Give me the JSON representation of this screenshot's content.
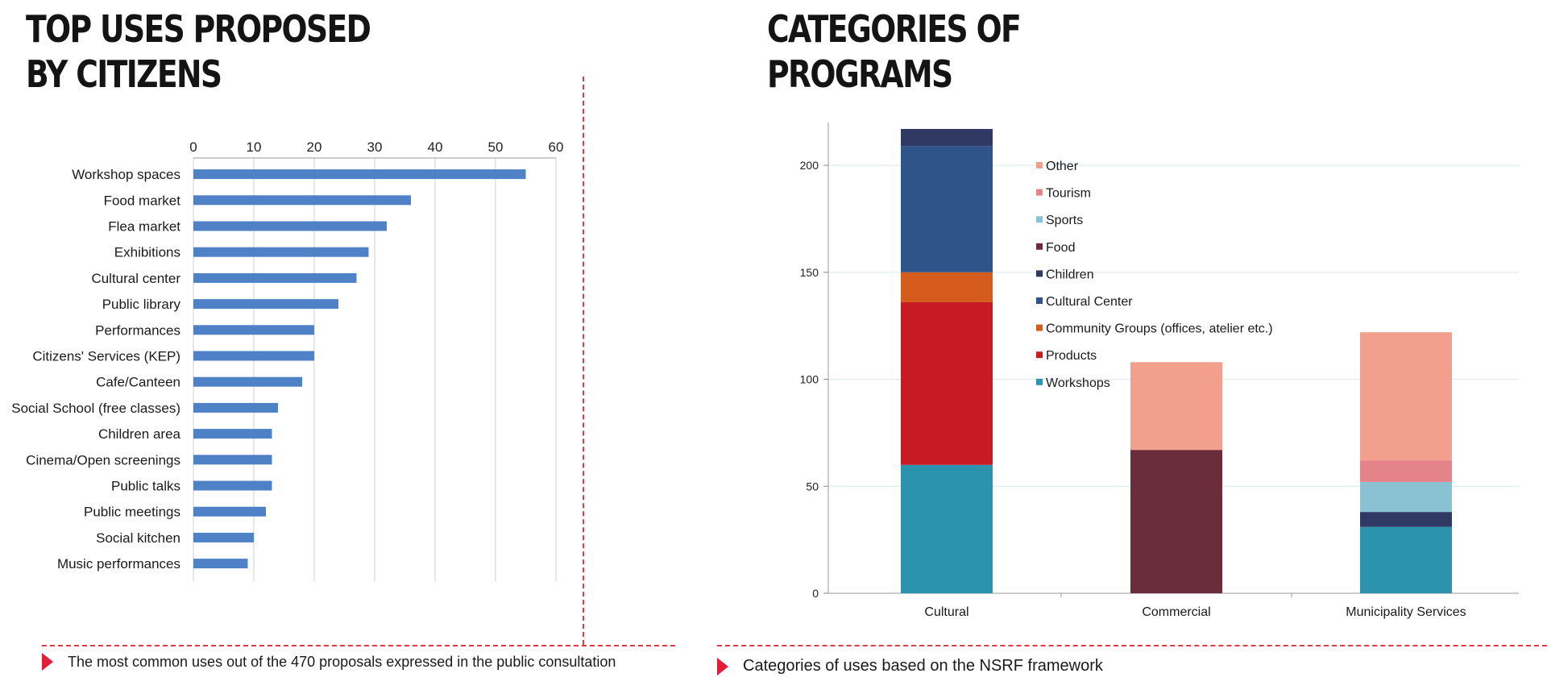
{
  "left": {
    "title_line1": "TOP USES PROPOSED",
    "title_line2": "BY CITIZENS",
    "caption": "The most common uses out of the 470 proposals expressed in the public consultation"
  },
  "right": {
    "title_line1": "CATEGORIES OF",
    "title_line2": "PROGRAMS",
    "caption": "Categories of uses based on the NSRF framework"
  },
  "colors": {
    "accent": "#e01e37",
    "bar_blue": "#4f81c7",
    "grid": "#cfcfcf"
  },
  "chart_data": [
    {
      "type": "bar",
      "orientation": "horizontal",
      "title": "TOP USES PROPOSED BY CITIZENS",
      "categories": [
        "Workshop spaces",
        "Food market",
        "Flea market",
        "Exhibitions",
        "Cultural center",
        "Public library",
        "Performances",
        "Citizens' Services (KEP)",
        "Cafe/Canteen",
        "Social School (free classes)",
        "Children area",
        "Cinema/Open screenings",
        "Public talks",
        "Public meetings",
        "Social kitchen",
        "Music performances"
      ],
      "values": [
        55,
        36,
        32,
        29,
        27,
        24,
        20,
        20,
        18,
        14,
        13,
        13,
        13,
        12,
        10,
        9
      ],
      "xlim": [
        0,
        60
      ],
      "xticks": [
        0,
        10,
        20,
        30,
        40,
        50,
        60
      ],
      "axis_position": "top",
      "grid": true,
      "color": "#4f81c7"
    },
    {
      "type": "bar",
      "stacked": true,
      "title": "CATEGORIES OF PROGRAMS",
      "categories": [
        "Cultural",
        "Commercial",
        "Municipality Services"
      ],
      "ylim": [
        0,
        220
      ],
      "yticks": [
        0,
        50,
        100,
        150,
        200
      ],
      "grid": true,
      "legend_position": "top-center",
      "series": [
        {
          "name": "Workshops",
          "color": "#2b93ae",
          "values": [
            60,
            0,
            31
          ]
        },
        {
          "name": "Products",
          "color": "#c81a25",
          "values": [
            76,
            0,
            0
          ]
        },
        {
          "name": "Community Groups (offices, atelier etc.)",
          "color": "#d65c1e",
          "values": [
            14,
            0,
            0
          ]
        },
        {
          "name": "Cultural Center",
          "color": "#2e5489",
          "values": [
            59,
            0,
            0
          ]
        },
        {
          "name": "Children",
          "color": "#2f3963",
          "values": [
            8,
            0,
            7
          ]
        },
        {
          "name": "Food",
          "color": "#6b2d3c",
          "values": [
            0,
            67,
            0
          ]
        },
        {
          "name": "Sports",
          "color": "#8bc2d3",
          "values": [
            0,
            0,
            14
          ]
        },
        {
          "name": "Tourism",
          "color": "#e5838b",
          "values": [
            0,
            0,
            10
          ]
        },
        {
          "name": "Other",
          "color": "#f2a08d",
          "values": [
            0,
            41,
            60
          ]
        }
      ],
      "legend_order": [
        "Other",
        "Tourism",
        "Sports",
        "Food",
        "Children",
        "Cultural Center",
        "Community Groups (offices, atelier etc.)",
        "Products",
        "Workshops"
      ]
    }
  ]
}
